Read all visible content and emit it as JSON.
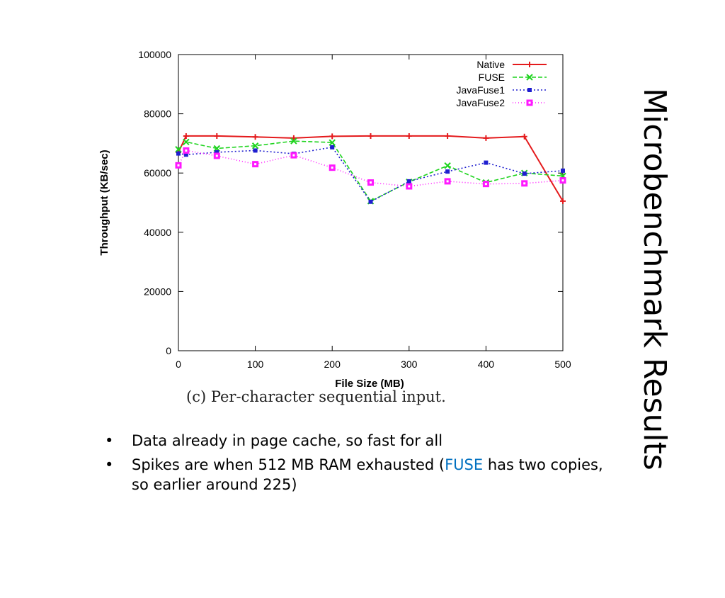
{
  "slide": {
    "title": "Microbenchmark Results",
    "caption": "(c) Per-character sequential input.",
    "bullets": [
      {
        "text": "Data already in page cache, so fast for all"
      },
      {
        "pre": "Spikes are when 512 MB RAM exhausted (",
        "accent": "FUSE",
        "post": " has two copies, so earlier around 225)"
      }
    ],
    "bullet_glyph": "•"
  },
  "colors": {
    "accent": "#0070c0"
  },
  "chart_data": {
    "type": "line",
    "xlabel": "File Size (MB)",
    "ylabel": "Throughput (KB/sec)",
    "xlim": [
      0,
      500
    ],
    "ylim": [
      0,
      100000
    ],
    "xticks": [
      0,
      100,
      200,
      300,
      400,
      500
    ],
    "yticks": [
      0,
      20000,
      40000,
      60000,
      80000,
      100000
    ],
    "grid": false,
    "legend_position": "top-right",
    "series": [
      {
        "name": "Native",
        "color": "#e41a1c",
        "dash": "",
        "marker": "plus",
        "points": [
          [
            0,
            67000
          ],
          [
            10,
            72500
          ],
          [
            50,
            72500
          ],
          [
            100,
            72200
          ],
          [
            150,
            71800
          ],
          [
            200,
            72400
          ],
          [
            250,
            72500
          ],
          [
            300,
            72500
          ],
          [
            350,
            72500
          ],
          [
            400,
            71800
          ],
          [
            450,
            72300
          ],
          [
            500,
            50500
          ]
        ]
      },
      {
        "name": "FUSE",
        "color": "#1dd41d",
        "dash": "6,3",
        "marker": "cross",
        "points": [
          [
            0,
            68000
          ],
          [
            10,
            70500
          ],
          [
            50,
            68300
          ],
          [
            100,
            69200
          ],
          [
            150,
            70800
          ],
          [
            200,
            70300
          ],
          [
            250,
            50500
          ],
          [
            300,
            57000
          ],
          [
            350,
            62500
          ],
          [
            400,
            56800
          ],
          [
            450,
            60000
          ],
          [
            500,
            59000
          ]
        ]
      },
      {
        "name": "JavaFuse1",
        "color": "#1f1fcf",
        "dash": "2,3",
        "marker": "filled-square",
        "points": [
          [
            0,
            66600
          ],
          [
            10,
            66200
          ],
          [
            50,
            67000
          ],
          [
            100,
            67600
          ],
          [
            150,
            66500
          ],
          [
            200,
            68700
          ],
          [
            250,
            50300
          ],
          [
            300,
            57200
          ],
          [
            350,
            60500
          ],
          [
            400,
            63500
          ],
          [
            450,
            59800
          ],
          [
            500,
            60800
          ]
        ]
      },
      {
        "name": "JavaFuse2",
        "color": "#ff19ff",
        "dash": "1,3",
        "marker": "open-square",
        "points": [
          [
            0,
            62600
          ],
          [
            10,
            67600
          ],
          [
            50,
            65800
          ],
          [
            100,
            63000
          ],
          [
            150,
            66000
          ],
          [
            200,
            61800
          ],
          [
            250,
            56800
          ],
          [
            300,
            55500
          ],
          [
            350,
            57200
          ],
          [
            400,
            56300
          ],
          [
            450,
            56500
          ],
          [
            500,
            57500
          ]
        ]
      }
    ]
  }
}
